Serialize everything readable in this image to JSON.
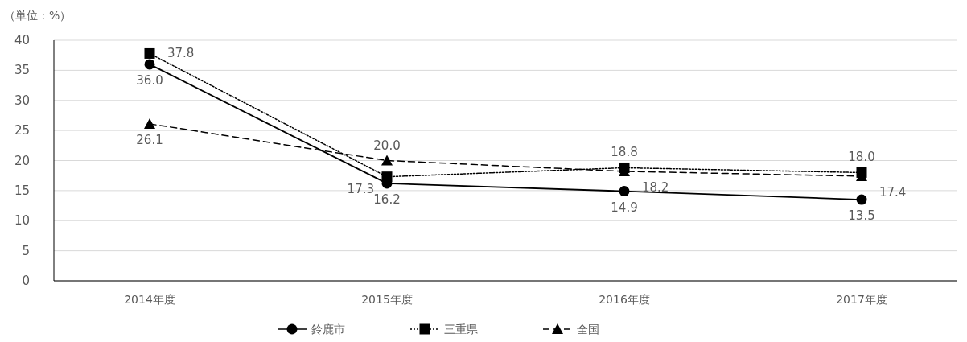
{
  "chart_data": {
    "type": "line",
    "ylabel": "（単位：%）",
    "categories": [
      "2014年度",
      "2015年度",
      "2016年度",
      "2017年度"
    ],
    "ylim": [
      0,
      40
    ],
    "yticks": [
      0,
      5,
      10,
      15,
      20,
      25,
      30,
      35,
      40
    ],
    "grid": "y",
    "legend": "bottom",
    "series": [
      {
        "name": "鈴鹿市",
        "color": "#000000",
        "marker": "circle",
        "line_style": "solid",
        "values": [
          36.0,
          16.2,
          14.9,
          13.5
        ],
        "value_labels": [
          "36.0",
          "16.2",
          "14.9",
          "13.5"
        ]
      },
      {
        "name": "三重県",
        "color": "#000000",
        "marker": "square",
        "line_style": "dotted",
        "values": [
          37.8,
          17.3,
          18.8,
          18.0
        ],
        "value_labels": [
          "37.8",
          "17.3",
          "18.8",
          "18.0"
        ]
      },
      {
        "name": "全国",
        "color": "#000000",
        "marker": "triangle",
        "line_style": "dashed",
        "values": [
          26.1,
          20.0,
          18.2,
          17.4
        ],
        "value_labels": [
          "26.1",
          "20.0",
          "18.2",
          "17.4"
        ]
      }
    ]
  }
}
